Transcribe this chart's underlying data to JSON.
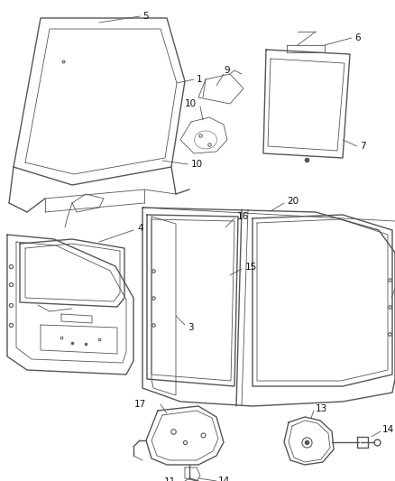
{
  "bg_color": "#ffffff",
  "line_color": "#555555",
  "label_color": "#111111",
  "fig_width": 4.38,
  "fig_height": 5.33,
  "dpi": 100,
  "label_fontsize": 7.5
}
